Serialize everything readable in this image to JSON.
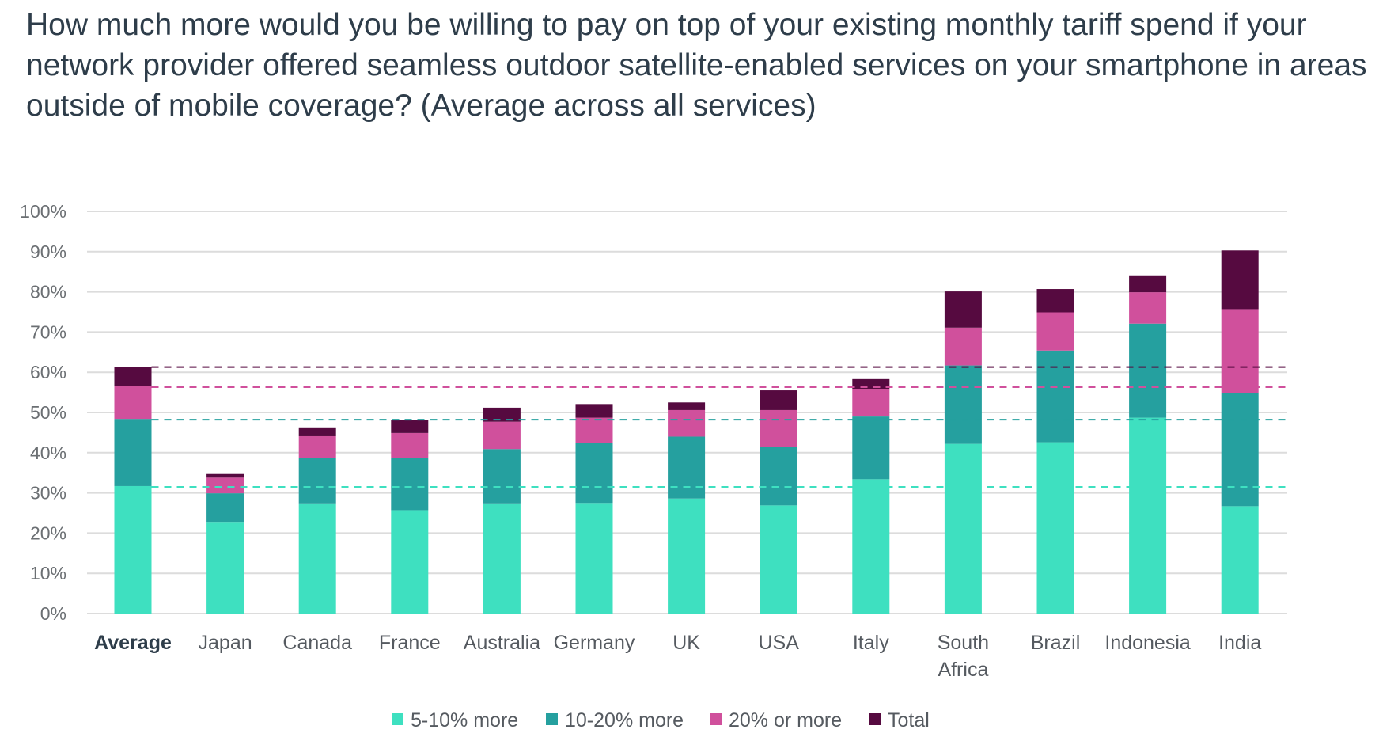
{
  "chart_data": {
    "type": "bar",
    "stacked": true,
    "title": "How much more would you be willing to pay on top of your existing monthly tariff spend if your network provider offered seamless outdoor satellite-enabled services on your smartphone in areas outside of mobile coverage? (Average across all services)",
    "xlabel": "",
    "ylabel": "",
    "ylim": [
      0,
      100
    ],
    "yticks": [
      "0%",
      "10%",
      "20%",
      "30%",
      "40%",
      "50%",
      "60%",
      "70%",
      "80%",
      "90%",
      "100%"
    ],
    "grid": true,
    "legend_position": "bottom",
    "categories": [
      "Average",
      "Japan",
      "Canada",
      "France",
      "Australia",
      "Germany",
      "UK",
      "USA",
      "Italy",
      "South Africa",
      "Brazil",
      "Indonesia",
      "India"
    ],
    "category_lines": [
      [
        "Average"
      ],
      [
        "Japan"
      ],
      [
        "Canada"
      ],
      [
        "France"
      ],
      [
        "Australia"
      ],
      [
        "Germany"
      ],
      [
        "UK"
      ],
      [
        "USA"
      ],
      [
        "Italy"
      ],
      [
        "South",
        "Africa"
      ],
      [
        "Brazil"
      ],
      [
        "Indonesia"
      ],
      [
        "India"
      ]
    ],
    "series": [
      {
        "name": "5-10% more",
        "color": "#3ee0c0",
        "values": [
          31.7,
          22.6,
          27.4,
          25.7,
          27.4,
          27.5,
          28.6,
          26.9,
          33.4,
          42.2,
          42.6,
          48.7,
          26.7
        ]
      },
      {
        "name": "10-20% more",
        "color": "#25a09f",
        "values": [
          16.7,
          7.3,
          11.3,
          13.0,
          13.5,
          15.0,
          15.4,
          14.6,
          15.6,
          19.5,
          22.8,
          23.4,
          28.2
        ]
      },
      {
        "name": "20% or more",
        "color": "#d0509c",
        "values": [
          8.1,
          3.9,
          5.4,
          6.2,
          6.8,
          6.2,
          6.6,
          9.1,
          6.9,
          9.4,
          9.5,
          7.8,
          20.8
        ]
      },
      {
        "name": "Total",
        "color": "#560a40",
        "values": [
          4.9,
          0.9,
          2.2,
          3.2,
          3.5,
          3.4,
          1.9,
          4.9,
          2.4,
          9.0,
          5.8,
          4.2,
          14.6
        ]
      }
    ],
    "reference_lines": [
      {
        "value": 31.5,
        "color": "#3ee0c0",
        "style": "dashed"
      },
      {
        "value": 48.2,
        "color": "#25a09f",
        "style": "dashed"
      },
      {
        "value": 56.3,
        "color": "#d0509c",
        "style": "dashed"
      },
      {
        "value": 61.3,
        "color": "#560a40",
        "style": "dashed"
      }
    ]
  }
}
